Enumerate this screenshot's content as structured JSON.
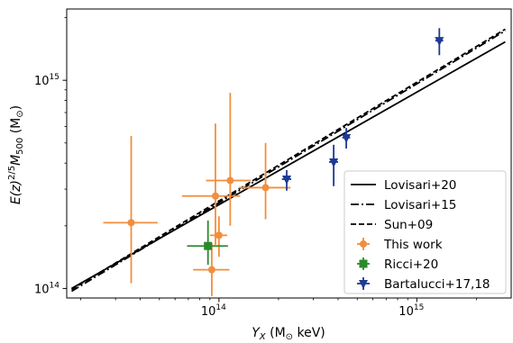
{
  "chart_data": {
    "type": "scatter",
    "x_scale": "log",
    "y_scale": "log",
    "xlim": [
      17000000000000.0,
      3000000000000000.0
    ],
    "ylim": [
      90000000000000.0,
      2200000000000000.0
    ],
    "grid": false,
    "legend_position": "lower-right",
    "xlabel": {
      "main": "Y",
      "sub": "X",
      "rest": " (M",
      "sun_sub": "⊙",
      "tail": " keV)"
    },
    "ylabel": {
      "e": "E(z)",
      "exp": "2/5",
      "m": "M",
      "msub": "500",
      "rest": " (M",
      "sun_sub": "⊙",
      "tail": ")"
    },
    "x_ticks": [
      {
        "value": 100000000000000.0,
        "base": "10",
        "exp": "14"
      },
      {
        "value": 1000000000000000.0,
        "base": "10",
        "exp": "15"
      }
    ],
    "y_ticks": [
      {
        "value": 100000000000000.0,
        "base": "10",
        "exp": "14"
      },
      {
        "value": 1000000000000000.0,
        "base": "10",
        "exp": "15"
      }
    ],
    "lines": [
      {
        "name": "Lovisari+20",
        "style": "solid",
        "color": "#000000",
        "points": [
          [
            18000000000000.0,
            100000000000000.0
          ],
          [
            2800000000000000.0,
            1530000000000000.0
          ]
        ]
      },
      {
        "name": "Lovisari+15",
        "style": "dashdot",
        "color": "#000000",
        "points": [
          [
            18000000000000.0,
            97000000000000.0
          ],
          [
            2800000000000000.0,
            1730000000000000.0
          ]
        ]
      },
      {
        "name": "Sun+09",
        "style": "dashed",
        "color": "#000000",
        "points": [
          [
            18000000000000.0,
            99000000000000.0
          ],
          [
            2800000000000000.0,
            1760000000000000.0
          ]
        ]
      }
    ],
    "series": [
      {
        "name": "This work",
        "color": "#f28e3c",
        "marker": "circle",
        "points": [
          {
            "x": 36000000000000.0,
            "y": 207000000000000.0,
            "xlo": 26000000000000.0,
            "xhi": 49000000000000.0,
            "ylo": 106000000000000.0,
            "yhi": 540000000000000.0
          },
          {
            "x": 92000000000000.0,
            "y": 123000000000000.0,
            "xlo": 74000000000000.0,
            "xhi": 113000000000000.0,
            "ylo": 92000000000000.0,
            "yhi": 165000000000000.0
          },
          {
            "x": 96000000000000.0,
            "y": 278000000000000.0,
            "xlo": 65000000000000.0,
            "xhi": 128000000000000.0,
            "ylo": 162000000000000.0,
            "yhi": 620000000000000.0
          },
          {
            "x": 100000000000000.0,
            "y": 180000000000000.0,
            "xlo": 90000000000000.0,
            "xhi": 110000000000000.0,
            "ylo": 142000000000000.0,
            "yhi": 222000000000000.0
          },
          {
            "x": 114000000000000.0,
            "y": 330000000000000.0,
            "xlo": 86000000000000.0,
            "xhi": 145000000000000.0,
            "ylo": 200000000000000.0,
            "yhi": 870000000000000.0
          },
          {
            "x": 172000000000000.0,
            "y": 305000000000000.0,
            "xlo": 126000000000000.0,
            "xhi": 230000000000000.0,
            "ylo": 215000000000000.0,
            "yhi": 500000000000000.0
          }
        ]
      },
      {
        "name": "Ricci+20",
        "color": "#2a8a2a",
        "marker": "square",
        "points": [
          {
            "x": 88000000000000.0,
            "y": 160000000000000.0,
            "xlo": 69000000000000.0,
            "xhi": 111000000000000.0,
            "ylo": 130000000000000.0,
            "yhi": 212000000000000.0
          }
        ]
      },
      {
        "name": "Bartalucci+17,18",
        "color": "#1f3a93",
        "marker": "tri_down",
        "points": [
          {
            "x": 220000000000000.0,
            "y": 335000000000000.0,
            "xlo": 208000000000000.0,
            "xhi": 232000000000000.0,
            "ylo": 295000000000000.0,
            "yhi": 370000000000000.0
          },
          {
            "x": 380000000000000.0,
            "y": 405000000000000.0,
            "xlo": 360000000000000.0,
            "xhi": 400000000000000.0,
            "ylo": 310000000000000.0,
            "yhi": 490000000000000.0
          },
          {
            "x": 440000000000000.0,
            "y": 530000000000000.0,
            "xlo": 420000000000000.0,
            "xhi": 460000000000000.0,
            "ylo": 470000000000000.0,
            "yhi": 590000000000000.0
          },
          {
            "x": 1300000000000000.0,
            "y": 1550000000000000.0,
            "xlo": 1240000000000000.0,
            "xhi": 1360000000000000.0,
            "ylo": 1320000000000000.0,
            "yhi": 1780000000000000.0
          }
        ]
      }
    ]
  }
}
